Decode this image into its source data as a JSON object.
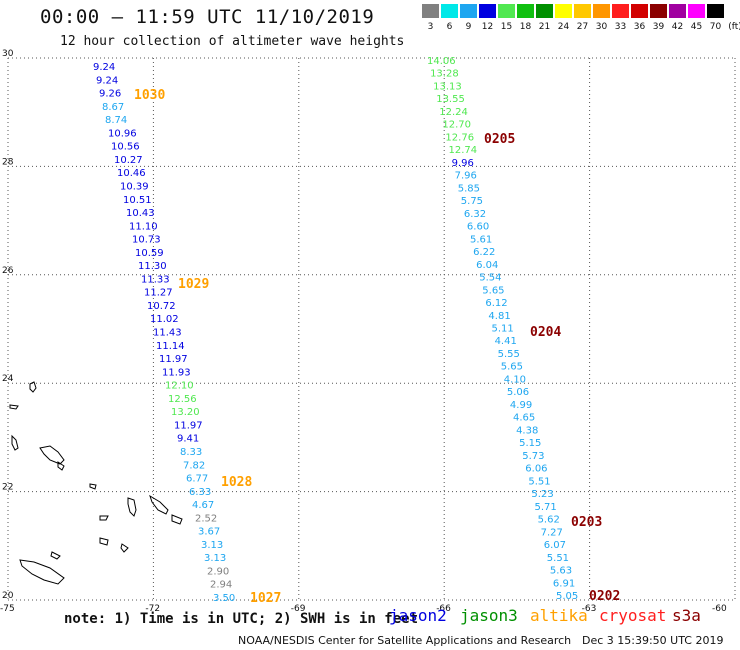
{
  "header": {
    "title": "00:00 – 11:59 UTC 11/10/2019",
    "subtitle": "12 hour collection of altimeter wave heights"
  },
  "legend": {
    "unit": "(ft)",
    "levels": [
      "3",
      "6",
      "9",
      "12",
      "15",
      "18",
      "21",
      "24",
      "27",
      "30",
      "33",
      "36",
      "39",
      "42",
      "45",
      "70"
    ],
    "colors": [
      "#808080",
      "#00e8e8",
      "#1ea6f0",
      "#0000e0",
      "#50e850",
      "#10c010",
      "#009000",
      "#ffff00",
      "#ffc800",
      "#ff9600",
      "#ff1e1e",
      "#d20000",
      "#8b0000",
      "#a000a0",
      "#ff00ff",
      "#000000"
    ]
  },
  "axes": {
    "lat_labels": [
      "30",
      "28",
      "26",
      "24",
      "22",
      "20"
    ],
    "lon_labels": [
      "-75",
      "-72",
      "-69",
      "-66",
      "-63",
      "-60"
    ]
  },
  "tracks": {
    "west": {
      "values": [
        "9.24",
        "9.24",
        "9.26",
        "8.67",
        "8.74",
        "10.96",
        "10.56",
        "10.27",
        "10.46",
        "10.39",
        "10.51",
        "10.43",
        "11.10",
        "10.73",
        "10.59",
        "11.30",
        "11.33",
        "11.27",
        "10.72",
        "11.02",
        "11.43",
        "11.14",
        "11.97",
        "11.93",
        "12.10",
        "12.56",
        "13.20",
        "11.97",
        "9.41",
        "8.33",
        "7.82",
        "6.77",
        "6.33",
        "4.67",
        "2.52",
        "3.67",
        "3.13",
        "3.13",
        "2.90",
        "2.94",
        "3.50"
      ],
      "colors": [
        "#0000e0",
        "#0000e0",
        "#0000e0",
        "#1ea6f0",
        "#1ea6f0",
        "#0000e0",
        "#0000e0",
        "#0000e0",
        "#0000e0",
        "#0000e0",
        "#0000e0",
        "#0000e0",
        "#0000e0",
        "#0000e0",
        "#0000e0",
        "#0000e0",
        "#0000e0",
        "#0000e0",
        "#0000e0",
        "#0000e0",
        "#0000e0",
        "#0000e0",
        "#0000e0",
        "#0000e0",
        "#50e850",
        "#50e850",
        "#50e850",
        "#0000e0",
        "#0000e0",
        "#1ea6f0",
        "#1ea6f0",
        "#1ea6f0",
        "#1ea6f0",
        "#1ea6f0",
        "#808080",
        "#1ea6f0",
        "#1ea6f0",
        "#1ea6f0",
        "#808080",
        "#808080",
        "#1ea6f0"
      ],
      "times": [
        {
          "label": "1030",
          "color": "#ffa000"
        },
        {
          "label": "1029",
          "color": "#ffa000"
        },
        {
          "label": "1028",
          "color": "#ffa000"
        },
        {
          "label": "1027",
          "color": "#ffa000"
        }
      ]
    },
    "east": {
      "values": [
        "14.06",
        "13.28",
        "13.13",
        "13.55",
        "12.24",
        "12.70",
        "12.76",
        "12.74",
        "9.96",
        "7.96",
        "5.85",
        "5.75",
        "6.32",
        "6.60",
        "5.61",
        "6.22",
        "6.04",
        "5.54",
        "5.65",
        "6.12",
        "4.81",
        "5.11",
        "4.41",
        "5.55",
        "5.65",
        "4.10",
        "5.06",
        "4.99",
        "4.65",
        "4.38",
        "5.15",
        "5.73",
        "6.06",
        "5.51",
        "5.23",
        "5.71",
        "5.62",
        "7.27",
        "6.07",
        "5.51",
        "5.63",
        "6.91",
        "5.05"
      ],
      "colors": [
        "#50e850",
        "#50e850",
        "#50e850",
        "#50e850",
        "#50e850",
        "#50e850",
        "#50e850",
        "#50e850",
        "#0000e0",
        "#1ea6f0",
        "#1ea6f0",
        "#1ea6f0",
        "#1ea6f0",
        "#1ea6f0",
        "#1ea6f0",
        "#1ea6f0",
        "#1ea6f0",
        "#1ea6f0",
        "#1ea6f0",
        "#1ea6f0",
        "#1ea6f0",
        "#1ea6f0",
        "#1ea6f0",
        "#1ea6f0",
        "#1ea6f0",
        "#1ea6f0",
        "#1ea6f0",
        "#1ea6f0",
        "#1ea6f0",
        "#1ea6f0",
        "#1ea6f0",
        "#1ea6f0",
        "#1ea6f0",
        "#1ea6f0",
        "#1ea6f0",
        "#1ea6f0",
        "#1ea6f0",
        "#1ea6f0",
        "#1ea6f0",
        "#1ea6f0",
        "#1ea6f0",
        "#1ea6f0",
        "#1ea6f0"
      ],
      "times": [
        {
          "label": "0205",
          "color": "#8b0000"
        },
        {
          "label": "0204",
          "color": "#8b0000"
        },
        {
          "label": "0203",
          "color": "#8b0000"
        },
        {
          "label": "0202",
          "color": "#8b0000"
        }
      ]
    }
  },
  "footer": {
    "note": "note: 1) Time is in UTC; 2) SWH is in feet",
    "satellites": [
      {
        "name": "jason2",
        "color": "#0000e0"
      },
      {
        "name": "jason3",
        "color": "#009000"
      },
      {
        "name": "altika",
        "color": "#ffa000"
      },
      {
        "name": "cryosat",
        "color": "#ff1e1e"
      },
      {
        "name": "s3a",
        "color": "#8b0000"
      }
    ],
    "credit": "NOAA/NESDIS Center for Satellite Applications and Research",
    "timestamp": "Dec  3 15:39:50 UTC 2019"
  }
}
